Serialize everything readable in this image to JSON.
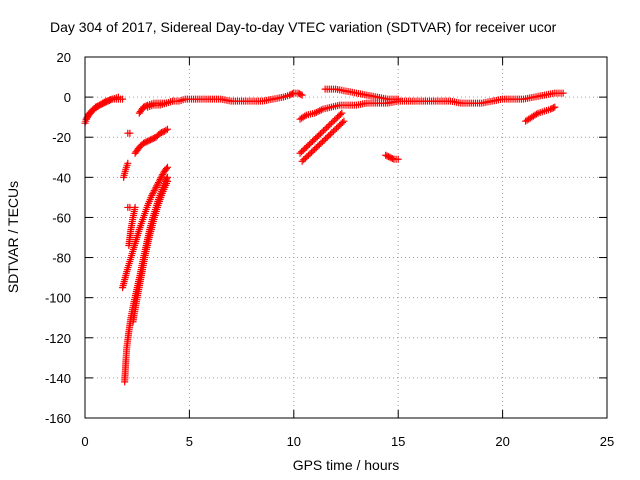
{
  "chart_data": {
    "type": "scatter",
    "title": "Day 304 of 2017, Sidereal Day-to-day VTEC variation (SDTVAR) for receiver ucor",
    "xlabel": "GPS time / hours",
    "ylabel": "SDTVAR / TECUs",
    "xlim": [
      0,
      25
    ],
    "ylim": [
      -160,
      20
    ],
    "xticks": [
      "0",
      "5",
      "10",
      "15",
      "20",
      "25"
    ],
    "yticks": [
      "20",
      "0",
      "-20",
      "-40",
      "-60",
      "-80",
      "-100",
      "-120",
      "-140",
      "-160"
    ],
    "grid": true,
    "marker": "+",
    "color": "#ff0000",
    "series": [
      {
        "segments": [
          [
            [
              0.0,
              -13
            ],
            [
              0.15,
              -9
            ],
            [
              0.3,
              -7
            ],
            [
              0.5,
              -5
            ],
            [
              0.7,
              -4
            ],
            [
              0.9,
              -3
            ],
            [
              1.1,
              -2
            ],
            [
              1.3,
              -1
            ],
            [
              1.5,
              -1
            ],
            [
              1.7,
              -1
            ],
            [
              1.8,
              -1
            ]
          ],
          [
            [
              0.05,
              -11
            ],
            [
              0.25,
              -8
            ],
            [
              0.45,
              -6
            ],
            [
              0.7,
              -4
            ],
            [
              1.0,
              -2
            ],
            [
              1.3,
              -1
            ],
            [
              1.6,
              0
            ]
          ],
          [
            [
              2.05,
              -18
            ],
            [
              2.15,
              -18
            ]
          ],
          [
            [
              1.85,
              -40
            ],
            [
              1.95,
              -36
            ],
            [
              2.05,
              -33
            ]
          ],
          [
            [
              2.05,
              -55
            ],
            [
              2.15,
              -55
            ]
          ],
          [
            [
              2.1,
              -74
            ],
            [
              2.2,
              -66
            ],
            [
              2.3,
              -60
            ],
            [
              2.4,
              -55
            ]
          ],
          [
            [
              2.4,
              -28
            ],
            [
              2.6,
              -25
            ],
            [
              2.8,
              -23
            ],
            [
              3.0,
              -22
            ],
            [
              3.2,
              -21
            ],
            [
              3.4,
              -20
            ],
            [
              3.6,
              -18
            ],
            [
              3.8,
              -17
            ],
            [
              3.95,
              -16
            ]
          ],
          [
            [
              2.6,
              -8
            ],
            [
              2.8,
              -5
            ],
            [
              3.0,
              -4
            ],
            [
              3.3,
              -3
            ],
            [
              3.6,
              -3
            ],
            [
              3.9,
              -3
            ],
            [
              4.2,
              -2
            ],
            [
              4.5,
              -2
            ],
            [
              4.8,
              -1
            ],
            [
              5.1,
              -1
            ],
            [
              5.5,
              -1
            ],
            [
              6.0,
              -1
            ],
            [
              6.5,
              -1
            ],
            [
              7.0,
              -2
            ],
            [
              7.5,
              -2
            ],
            [
              8.0,
              -2
            ],
            [
              8.5,
              -2
            ],
            [
              9.0,
              -1
            ],
            [
              9.5,
              0
            ],
            [
              9.8,
              1
            ],
            [
              10.0,
              2
            ],
            [
              10.2,
              2
            ],
            [
              10.4,
              1
            ]
          ],
          [
            [
              3.0,
              -5
            ],
            [
              3.3,
              -4
            ],
            [
              3.6,
              -4
            ],
            [
              3.9,
              -3
            ],
            [
              4.2,
              -2
            ]
          ],
          [
            [
              1.8,
              -95
            ],
            [
              2.0,
              -87
            ],
            [
              2.2,
              -80
            ],
            [
              2.4,
              -73
            ],
            [
              2.6,
              -66
            ],
            [
              2.8,
              -60
            ],
            [
              3.0,
              -54
            ],
            [
              3.2,
              -49
            ],
            [
              3.4,
              -45
            ],
            [
              3.6,
              -41
            ],
            [
              3.8,
              -37
            ],
            [
              3.95,
              -35
            ]
          ],
          [
            [
              1.9,
              -142
            ],
            [
              1.95,
              -133
            ],
            [
              2.0,
              -125
            ],
            [
              2.1,
              -117
            ],
            [
              2.2,
              -110
            ],
            [
              2.35,
              -102
            ],
            [
              2.5,
              -95
            ],
            [
              2.65,
              -88
            ],
            [
              2.8,
              -80
            ],
            [
              2.95,
              -73
            ],
            [
              3.1,
              -66
            ],
            [
              3.25,
              -60
            ],
            [
              3.4,
              -55
            ],
            [
              3.55,
              -50
            ],
            [
              3.7,
              -46
            ],
            [
              3.85,
              -42
            ],
            [
              3.95,
              -40
            ]
          ],
          [
            [
              2.3,
              -112
            ],
            [
              2.5,
              -100
            ],
            [
              2.7,
              -89
            ],
            [
              2.9,
              -78
            ],
            [
              3.1,
              -69
            ],
            [
              3.3,
              -61
            ],
            [
              3.5,
              -54
            ],
            [
              3.7,
              -48
            ],
            [
              3.95,
              -42
            ]
          ],
          [
            [
              10.3,
              -11
            ],
            [
              10.6,
              -9
            ],
            [
              11.0,
              -8
            ],
            [
              11.4,
              -6
            ],
            [
              11.8,
              -5
            ],
            [
              12.2,
              -4
            ],
            [
              12.6,
              -4
            ],
            [
              13.0,
              -4
            ],
            [
              13.5,
              -3
            ],
            [
              14.0,
              -3
            ],
            [
              14.5,
              -3
            ],
            [
              15.0,
              -2
            ],
            [
              15.5,
              -2
            ],
            [
              16.0,
              -2
            ],
            [
              16.5,
              -2
            ],
            [
              17.0,
              -2
            ],
            [
              17.5,
              -2
            ],
            [
              18.0,
              -3
            ],
            [
              18.5,
              -3
            ],
            [
              19.0,
              -3
            ],
            [
              19.5,
              -2
            ],
            [
              20.0,
              -1
            ],
            [
              20.5,
              -1
            ],
            [
              21.0,
              -1
            ],
            [
              21.5,
              0
            ],
            [
              22.0,
              1
            ],
            [
              22.5,
              2
            ],
            [
              22.9,
              2
            ]
          ],
          [
            [
              11.5,
              4
            ],
            [
              12.0,
              4
            ],
            [
              12.5,
              3
            ],
            [
              13.0,
              2
            ],
            [
              13.5,
              1
            ],
            [
              14.0,
              0
            ],
            [
              14.5,
              -1
            ],
            [
              15.0,
              -1
            ]
          ],
          [
            [
              10.3,
              -28
            ],
            [
              10.6,
              -25
            ],
            [
              10.9,
              -22
            ],
            [
              11.2,
              -19
            ],
            [
              11.5,
              -16
            ],
            [
              11.8,
              -13
            ],
            [
              12.1,
              -10
            ],
            [
              12.3,
              -8
            ]
          ],
          [
            [
              10.4,
              -32
            ],
            [
              10.7,
              -29
            ],
            [
              11.0,
              -26
            ],
            [
              11.3,
              -23
            ],
            [
              11.6,
              -20
            ],
            [
              11.9,
              -17
            ],
            [
              12.2,
              -14
            ],
            [
              12.4,
              -12
            ]
          ],
          [
            [
              14.4,
              -29
            ],
            [
              14.6,
              -30
            ],
            [
              14.8,
              -31
            ],
            [
              15.0,
              -31
            ]
          ],
          [
            [
              21.1,
              -12
            ],
            [
              21.4,
              -10
            ],
            [
              21.7,
              -8
            ],
            [
              22.0,
              -7
            ],
            [
              22.3,
              -6
            ],
            [
              22.5,
              -5
            ]
          ]
        ]
      }
    ]
  }
}
